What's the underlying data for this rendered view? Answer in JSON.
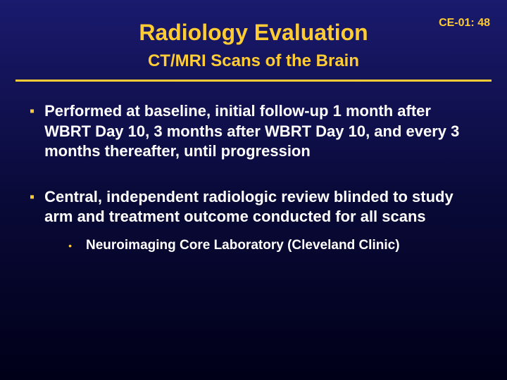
{
  "slide_number": "CE-01: 48",
  "title": "Radiology Evaluation",
  "subtitle": "CT/MRI Scans of the Brain",
  "colors": {
    "accent": "#ffcc33",
    "text": "#ffffff",
    "bg_top": "#1a1a6e",
    "bg_bottom": "#000018"
  },
  "bullets": [
    {
      "text": "Performed at baseline, initial follow-up 1 month after WBRT Day 10, 3 months after WBRT Day 10, and every 3 months thereafter, until progression",
      "sub": []
    },
    {
      "text": "Central, independent radiologic review blinded to study arm and treatment outcome conducted for all scans",
      "sub": [
        {
          "text": "Neuroimaging Core Laboratory (Cleveland Clinic)"
        }
      ]
    }
  ]
}
